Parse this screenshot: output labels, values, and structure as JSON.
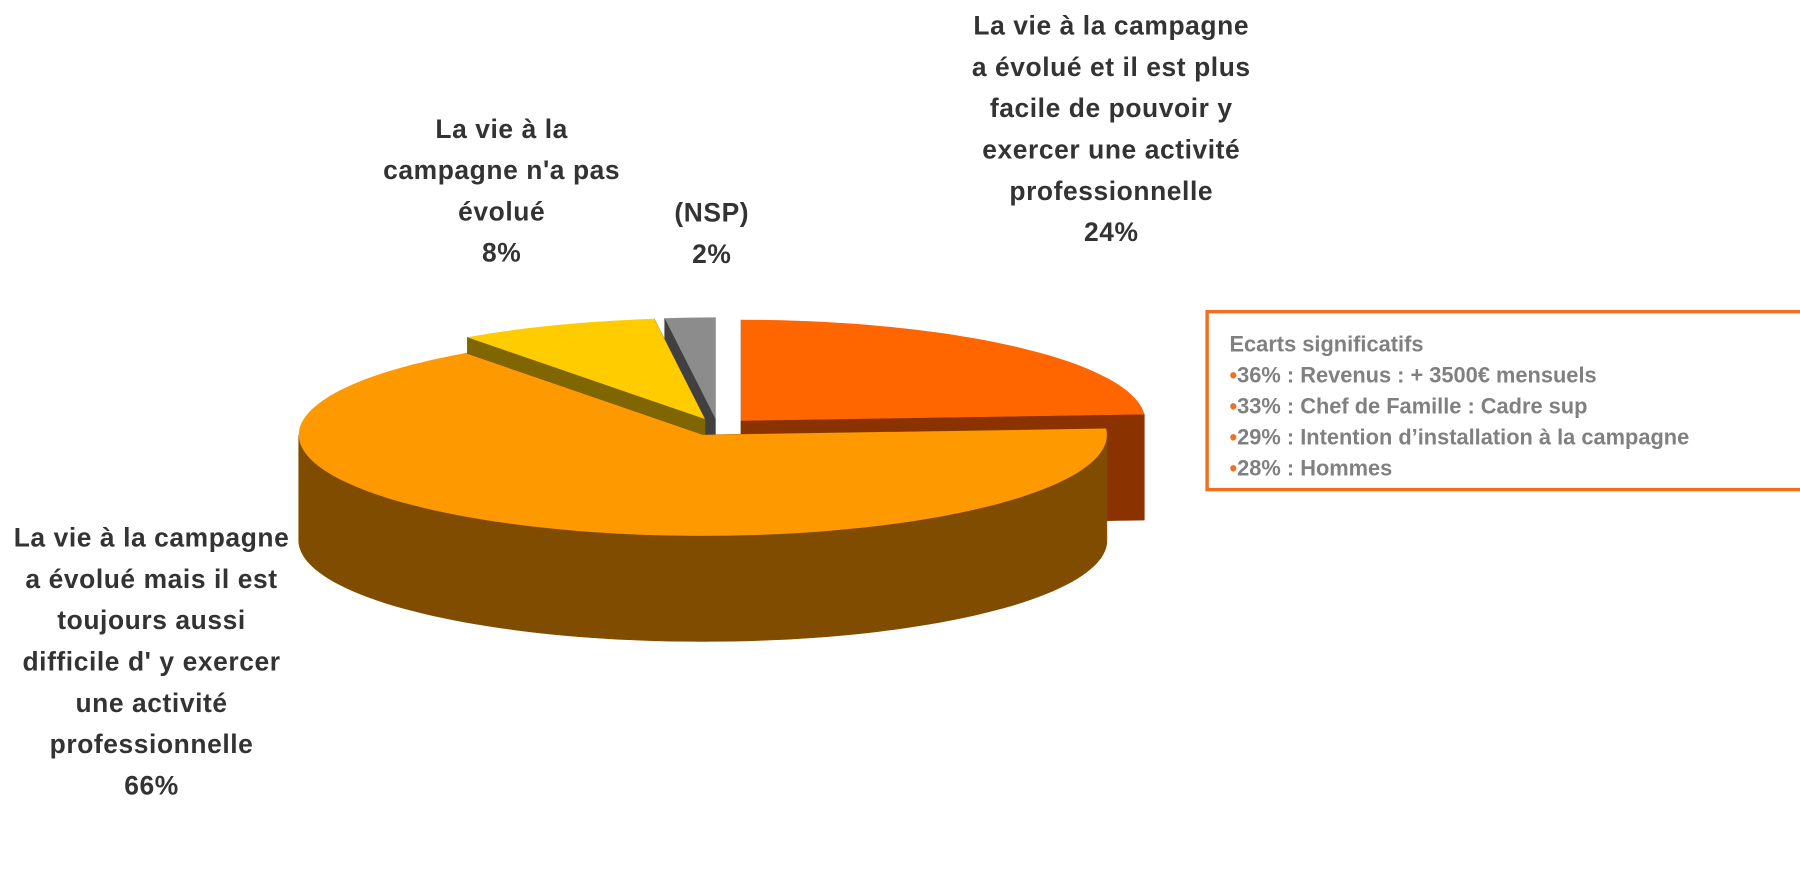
{
  "chart_data": {
    "type": "pie3d",
    "categories": [
      "La vie à la campagne a évolué et il est plus facile de pouvoir y exercer une activité professionnelle",
      "La vie à la campagne a évolué mais il est toujours aussi difficile d' y exercer une activité professionnelle",
      "La vie à la campagne n'a pas évolué",
      "(NSP)"
    ],
    "values": [
      24,
      66,
      8,
      2
    ],
    "value_labels": [
      "24%",
      "66%",
      "8%",
      "2%"
    ],
    "colors": [
      "#ff6600",
      "#ff9900",
      "#ffcc00",
      "#8c8c8c"
    ],
    "side_colors": [
      "#8a3300",
      "#804d00",
      "#7f6600",
      "#404040"
    ],
    "annotation": {
      "title": "Ecarts significatifs",
      "items": [
        "36% : Revenus : + 3500€ mensuels",
        "33% : Chef de Famille : Cadre sup",
        "29% : Intention d’installation à la campagne",
        "28% : Hommes"
      ]
    }
  }
}
